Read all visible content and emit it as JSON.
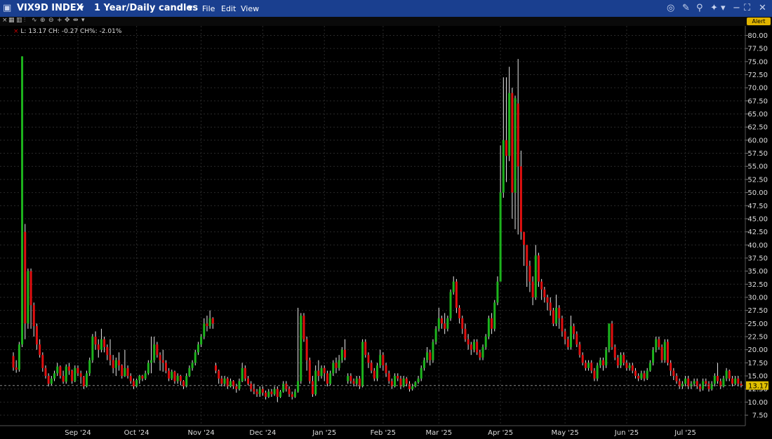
{
  "window": {
    "title": "VIX9D INDEX",
    "timeframe": "1 Year/Daily candles",
    "menu": [
      "File",
      "Edit",
      "View"
    ],
    "alert_label": "Alert"
  },
  "legend": {
    "text": "L: 13.17 CH: -0.27 CH%: -2.01%"
  },
  "last_price_label": "13.17",
  "colors": {
    "up": "#1db31d",
    "down": "#e01010",
    "background": "#000000",
    "title_bar": "#1a3f8f",
    "last_price_tag": "#e0c000"
  },
  "chart_data": {
    "type": "candlestick",
    "title": "",
    "x_tick_labels": [
      "Sep '24",
      "Oct '24",
      "Nov '24",
      "Dec '24",
      "Jan '25",
      "Feb '25",
      "Mar '25",
      "Apr '25",
      "May '25",
      "Jun '25",
      "Jul '25"
    ],
    "y_tick_labels": [
      "80.00",
      "77.50",
      "75.00",
      "72.50",
      "70.00",
      "67.50",
      "65.00",
      "62.50",
      "60.00",
      "57.50",
      "55.00",
      "52.50",
      "50.00",
      "47.50",
      "45.00",
      "42.50",
      "40.00",
      "37.50",
      "35.00",
      "32.50",
      "30.00",
      "27.50",
      "25.00",
      "22.50",
      "20.00",
      "17.50",
      "15.00",
      "12.50",
      "10.00",
      "7.50"
    ],
    "ylim": [
      5.5,
      81
    ],
    "last_value": 13.17,
    "grid": true,
    "candles": [
      [
        18.8,
        16.6,
        19.5,
        16.0
      ],
      [
        16.6,
        16.2,
        18.0,
        15.6
      ],
      [
        16.2,
        21.0,
        21.5,
        15.8
      ],
      [
        21.0,
        76.0,
        76.0,
        20.5
      ],
      [
        42.5,
        25.0,
        44.0,
        22.0
      ],
      [
        25.0,
        35.0,
        35.5,
        24.0
      ],
      [
        35.0,
        28.5,
        35.5,
        24.0
      ],
      [
        28.5,
        24.5,
        29.0,
        22.5
      ],
      [
        24.5,
        21.0,
        25.0,
        20.0
      ],
      [
        21.0,
        19.0,
        22.0,
        18.5
      ],
      [
        19.0,
        16.5,
        19.5,
        15.8
      ],
      [
        16.5,
        15.0,
        17.0,
        14.5
      ],
      [
        15.0,
        13.5,
        15.5,
        13.0
      ],
      [
        13.5,
        14.5,
        15.0,
        13.2
      ],
      [
        14.5,
        15.5,
        16.0,
        14.0
      ],
      [
        15.5,
        16.8,
        17.5,
        15.0
      ],
      [
        16.8,
        15.0,
        17.0,
        14.5
      ],
      [
        15.0,
        13.9,
        16.0,
        13.5
      ],
      [
        13.9,
        16.8,
        17.2,
        13.5
      ],
      [
        16.8,
        16.0,
        17.5,
        15.2
      ],
      [
        16.0,
        14.0,
        16.2,
        13.5
      ],
      [
        14.0,
        16.5,
        17.0,
        13.8
      ],
      [
        16.5,
        15.5,
        17.0,
        15.0
      ],
      [
        15.5,
        14.8,
        16.0,
        13.5
      ],
      [
        14.8,
        13.0,
        15.0,
        12.5
      ],
      [
        13.0,
        15.5,
        16.0,
        12.8
      ],
      [
        15.5,
        18.0,
        18.5,
        15.0
      ],
      [
        18.0,
        22.5,
        23.0,
        17.5
      ],
      [
        22.5,
        21.0,
        23.5,
        20.0
      ],
      [
        21.0,
        20.0,
        22.0,
        18.5
      ],
      [
        20.0,
        22.0,
        24.0,
        19.5
      ],
      [
        22.0,
        20.5,
        22.5,
        19.5
      ],
      [
        20.5,
        19.0,
        21.0,
        18.0
      ],
      [
        19.0,
        18.0,
        22.0,
        17.0
      ],
      [
        18.0,
        16.5,
        19.0,
        15.5
      ],
      [
        16.5,
        18.0,
        18.5,
        15.0
      ],
      [
        18.0,
        17.0,
        19.5,
        16.0
      ],
      [
        17.0,
        15.0,
        17.2,
        14.5
      ],
      [
        15.0,
        16.5,
        20.0,
        14.8
      ],
      [
        16.5,
        15.0,
        17.0,
        14.5
      ],
      [
        15.0,
        14.0,
        15.5,
        13.5
      ],
      [
        14.0,
        13.0,
        14.5,
        12.5
      ],
      [
        13.0,
        14.2,
        14.5,
        12.8
      ],
      [
        14.2,
        15.0,
        15.2,
        13.5
      ],
      [
        15.0,
        14.5,
        15.2,
        14.0
      ],
      [
        14.5,
        15.5,
        16.0,
        14.2
      ],
      [
        15.5,
        17.5,
        18.0,
        15.2
      ],
      [
        17.5,
        18.0,
        22.5,
        15.5
      ],
      [
        18.0,
        21.0,
        22.5,
        17.5
      ],
      [
        21.0,
        19.0,
        21.5,
        18.5
      ],
      [
        19.0,
        18.0,
        19.5,
        16.0
      ],
      [
        18.0,
        17.5,
        20.0,
        15.8
      ],
      [
        17.5,
        16.0,
        18.0,
        15.5
      ],
      [
        16.0,
        14.5,
        16.5,
        14.0
      ],
      [
        14.5,
        15.8,
        16.2,
        14.2
      ],
      [
        15.8,
        14.0,
        16.0,
        13.5
      ],
      [
        14.0,
        15.0,
        15.5,
        13.5
      ],
      [
        15.0,
        14.0,
        15.2,
        13.2
      ],
      [
        14.0,
        13.0,
        14.2,
        12.5
      ],
      [
        13.0,
        15.0,
        15.5,
        12.8
      ],
      [
        15.0,
        16.5,
        17.0,
        14.8
      ],
      [
        16.5,
        17.5,
        18.0,
        16.0
      ],
      [
        17.5,
        19.5,
        20.0,
        17.0
      ],
      [
        19.5,
        21.0,
        21.5,
        19.0
      ],
      [
        21.0,
        22.5,
        23.0,
        20.5
      ],
      [
        22.5,
        25.0,
        26.0,
        22.0
      ],
      [
        25.0,
        24.5,
        26.5,
        23.5
      ],
      [
        24.5,
        26.0,
        27.5,
        24.0
      ],
      [
        26.0,
        25.0,
        26.2,
        24.0
      ],
      [
        17.0,
        16.0,
        17.5,
        15.5
      ],
      [
        16.0,
        14.5,
        16.2,
        13.5
      ],
      [
        14.5,
        13.5,
        15.0,
        13.0
      ],
      [
        13.5,
        14.5,
        15.0,
        13.0
      ],
      [
        14.5,
        13.0,
        14.8,
        12.5
      ],
      [
        13.0,
        14.0,
        14.5,
        12.8
      ],
      [
        14.0,
        13.0,
        14.2,
        12.5
      ],
      [
        13.0,
        12.5,
        13.5,
        11.8
      ],
      [
        12.5,
        14.0,
        14.5,
        12.2
      ],
      [
        14.0,
        16.5,
        17.5,
        13.8
      ],
      [
        16.5,
        14.5,
        17.0,
        14.0
      ],
      [
        14.5,
        13.5,
        15.0,
        13.2
      ],
      [
        13.5,
        12.5,
        14.0,
        12.0
      ],
      [
        12.5,
        12.0,
        13.5,
        11.5
      ],
      [
        12.0,
        11.5,
        12.5,
        11.0
      ],
      [
        11.5,
        12.5,
        13.0,
        11.0
      ],
      [
        12.5,
        11.8,
        13.0,
        11.2
      ],
      [
        11.8,
        11.0,
        12.2,
        10.5
      ],
      [
        11.0,
        12.0,
        12.5,
        10.8
      ],
      [
        12.0,
        11.5,
        12.5,
        11.0
      ],
      [
        11.5,
        12.5,
        13.0,
        11.2
      ],
      [
        12.5,
        11.0,
        13.0,
        10.0
      ],
      [
        11.0,
        12.0,
        12.3,
        10.8
      ],
      [
        12.0,
        13.5,
        14.0,
        11.8
      ],
      [
        13.5,
        12.5,
        14.0,
        12.0
      ],
      [
        12.5,
        11.5,
        13.0,
        11.0
      ],
      [
        11.5,
        11.0,
        12.0,
        10.5
      ],
      [
        11.0,
        12.0,
        12.5,
        10.8
      ],
      [
        12.0,
        14.0,
        28.0,
        11.8
      ],
      [
        14.0,
        26.5,
        27.0,
        13.5
      ],
      [
        26.5,
        22.0,
        27.0,
        21.5
      ],
      [
        22.0,
        18.0,
        22.5,
        16.0
      ],
      [
        18.0,
        14.0,
        18.5,
        13.5
      ],
      [
        14.0,
        11.5,
        15.0,
        11.0
      ],
      [
        11.5,
        16.0,
        17.0,
        11.2
      ],
      [
        16.0,
        15.0,
        18.0,
        14.0
      ],
      [
        15.0,
        16.5,
        17.0,
        14.5
      ],
      [
        16.5,
        15.5,
        17.0,
        14.0
      ],
      [
        15.5,
        13.5,
        16.0,
        13.0
      ],
      [
        13.5,
        15.5,
        16.0,
        13.2
      ],
      [
        15.5,
        17.5,
        18.0,
        15.0
      ],
      [
        17.5,
        16.5,
        18.5,
        15.5
      ],
      [
        16.5,
        18.0,
        19.0,
        16.0
      ],
      [
        18.0,
        20.0,
        20.5,
        17.5
      ],
      [
        20.0,
        18.5,
        22.0,
        18.0
      ],
      [
        14.0,
        15.0,
        15.5,
        13.5
      ],
      [
        15.0,
        14.0,
        15.5,
        13.5
      ],
      [
        14.0,
        13.5,
        14.5,
        13.0
      ],
      [
        13.5,
        14.5,
        15.0,
        13.0
      ],
      [
        14.5,
        13.0,
        15.0,
        12.5
      ],
      [
        13.0,
        21.5,
        22.0,
        12.8
      ],
      [
        21.5,
        19.0,
        22.0,
        18.5
      ],
      [
        19.0,
        17.5,
        19.5,
        16.5
      ],
      [
        17.5,
        16.0,
        18.0,
        15.5
      ],
      [
        16.0,
        14.5,
        16.5,
        14.0
      ],
      [
        14.5,
        17.0,
        17.5,
        14.0
      ],
      [
        17.0,
        19.0,
        20.0,
        16.5
      ],
      [
        19.0,
        17.0,
        19.5,
        16.0
      ],
      [
        17.0,
        15.5,
        17.5,
        14.8
      ],
      [
        15.5,
        14.0,
        16.0,
        13.5
      ],
      [
        14.0,
        13.0,
        14.5,
        12.5
      ],
      [
        13.0,
        15.0,
        15.5,
        12.8
      ],
      [
        15.0,
        14.5,
        15.5,
        14.0
      ],
      [
        14.5,
        13.0,
        15.0,
        12.5
      ],
      [
        13.0,
        14.5,
        15.0,
        12.8
      ],
      [
        14.5,
        13.5,
        14.8,
        13.0
      ],
      [
        13.5,
        12.5,
        14.0,
        12.0
      ],
      [
        12.5,
        13.0,
        13.5,
        12.2
      ],
      [
        13.0,
        13.8,
        14.0,
        12.8
      ],
      [
        13.8,
        14.5,
        15.0,
        13.5
      ],
      [
        14.5,
        16.5,
        17.0,
        14.0
      ],
      [
        16.5,
        18.0,
        18.5,
        16.0
      ],
      [
        18.0,
        19.5,
        20.5,
        17.5
      ],
      [
        19.5,
        18.0,
        20.0,
        17.0
      ],
      [
        18.0,
        21.5,
        22.0,
        17.5
      ],
      [
        21.5,
        24.0,
        24.5,
        21.0
      ],
      [
        24.0,
        26.0,
        28.0,
        23.5
      ],
      [
        26.0,
        25.0,
        26.5,
        24.0
      ],
      [
        25.0,
        24.0,
        27.0,
        23.0
      ],
      [
        24.0,
        26.0,
        26.5,
        23.5
      ],
      [
        26.0,
        31.0,
        31.5,
        25.5
      ],
      [
        31.0,
        33.0,
        34.0,
        30.5
      ],
      [
        33.0,
        28.0,
        33.5,
        27.0
      ],
      [
        28.0,
        26.0,
        28.5,
        25.0
      ],
      [
        26.0,
        24.0,
        26.5,
        23.0
      ],
      [
        24.0,
        22.0,
        25.0,
        21.5
      ],
      [
        22.0,
        21.0,
        23.0,
        20.0
      ],
      [
        21.0,
        20.0,
        21.5,
        19.0
      ],
      [
        20.0,
        21.5,
        22.0,
        19.5
      ],
      [
        21.5,
        19.5,
        22.0,
        19.0
      ],
      [
        19.5,
        18.5,
        20.0,
        18.0
      ],
      [
        18.5,
        20.5,
        21.0,
        18.0
      ],
      [
        20.5,
        22.5,
        23.0,
        20.0
      ],
      [
        22.5,
        26.0,
        26.5,
        22.0
      ],
      [
        26.0,
        24.0,
        27.0,
        23.0
      ],
      [
        24.0,
        29.0,
        29.5,
        23.5
      ],
      [
        29.0,
        33.0,
        34.0,
        28.5
      ],
      [
        33.0,
        50.0,
        59.0,
        44.0
      ],
      [
        50.0,
        60.0,
        72.0,
        49.0
      ],
      [
        60.0,
        57.0,
        72.0,
        52.0
      ],
      [
        57.0,
        69.0,
        74.0,
        56.0
      ],
      [
        69.0,
        50.0,
        70.0,
        45.0
      ],
      [
        50.0,
        68.0,
        68.5,
        43.0
      ],
      [
        67.0,
        55.0,
        75.5,
        42.0
      ],
      [
        55.0,
        42.5,
        58.0,
        41.0
      ],
      [
        42.5,
        40.0,
        40.5,
        36.0
      ],
      [
        40.0,
        36.0,
        37.5,
        32.0
      ],
      [
        36.0,
        33.0,
        37.0,
        31.0
      ],
      [
        33.0,
        30.0,
        34.0,
        28.5
      ],
      [
        30.0,
        38.0,
        40.0,
        29.5
      ],
      [
        38.0,
        33.0,
        38.5,
        32.0
      ],
      [
        33.0,
        31.5,
        33.5,
        29.5
      ],
      [
        31.5,
        30.0,
        32.0,
        29.0
      ],
      [
        30.0,
        29.0,
        30.5,
        27.5
      ],
      [
        29.0,
        27.5,
        30.0,
        26.5
      ],
      [
        27.5,
        25.0,
        28.0,
        24.5
      ],
      [
        25.0,
        28.0,
        30.5,
        24.5
      ],
      [
        28.0,
        26.0,
        28.5,
        24.0
      ],
      [
        26.0,
        23.5,
        26.5,
        22.5
      ],
      [
        23.5,
        22.0,
        24.0,
        21.0
      ],
      [
        22.0,
        20.5,
        22.5,
        20.0
      ],
      [
        20.5,
        24.5,
        26.5,
        20.0
      ],
      [
        24.5,
        23.0,
        25.0,
        22.0
      ],
      [
        23.0,
        21.0,
        23.5,
        20.5
      ],
      [
        21.0,
        19.0,
        21.5,
        18.5
      ],
      [
        19.0,
        17.5,
        19.5,
        17.0
      ],
      [
        17.5,
        16.5,
        18.0,
        16.0
      ],
      [
        16.5,
        17.5,
        18.0,
        16.0
      ],
      [
        17.5,
        16.0,
        18.0,
        15.5
      ],
      [
        16.0,
        14.5,
        16.5,
        14.0
      ],
      [
        14.5,
        17.0,
        17.5,
        14.0
      ],
      [
        17.0,
        18.0,
        18.5,
        16.5
      ],
      [
        18.0,
        17.0,
        18.5,
        16.0
      ],
      [
        17.0,
        20.0,
        20.5,
        16.5
      ],
      [
        20.0,
        25.0,
        25.0,
        19.5
      ],
      [
        25.0,
        20.5,
        25.5,
        20.0
      ],
      [
        20.5,
        18.5,
        21.0,
        18.0
      ],
      [
        18.5,
        17.0,
        19.0,
        16.5
      ],
      [
        17.0,
        19.0,
        19.5,
        16.5
      ],
      [
        19.0,
        17.5,
        19.5,
        17.0
      ],
      [
        17.5,
        16.5,
        18.0,
        16.0
      ],
      [
        16.5,
        17.0,
        17.5,
        16.0
      ],
      [
        17.0,
        16.0,
        17.5,
        15.5
      ],
      [
        16.0,
        15.0,
        16.5,
        14.5
      ],
      [
        15.0,
        14.5,
        15.5,
        14.0
      ],
      [
        14.5,
        15.5,
        16.0,
        14.2
      ],
      [
        15.5,
        14.5,
        16.0,
        14.0
      ],
      [
        14.5,
        16.0,
        16.5,
        14.2
      ],
      [
        16.0,
        17.5,
        18.0,
        15.8
      ],
      [
        17.5,
        20.0,
        20.5,
        17.0
      ],
      [
        20.0,
        22.0,
        22.5,
        19.5
      ],
      [
        22.0,
        20.5,
        22.5,
        20.0
      ],
      [
        20.5,
        18.0,
        21.0,
        17.5
      ],
      [
        18.0,
        21.5,
        22.0,
        17.5
      ],
      [
        21.5,
        17.5,
        22.0,
        17.0
      ],
      [
        17.5,
        16.0,
        18.0,
        15.0
      ],
      [
        16.0,
        15.0,
        16.5,
        14.2
      ],
      [
        15.0,
        14.0,
        15.5,
        13.5
      ],
      [
        14.0,
        13.0,
        14.5,
        12.5
      ],
      [
        13.0,
        13.5,
        14.0,
        12.5
      ],
      [
        13.5,
        14.5,
        15.0,
        13.0
      ],
      [
        14.5,
        13.0,
        15.0,
        12.5
      ],
      [
        13.0,
        13.5,
        14.0,
        12.5
      ],
      [
        13.5,
        14.0,
        14.5,
        13.0
      ],
      [
        14.0,
        13.0,
        14.5,
        12.5
      ],
      [
        13.0,
        12.5,
        13.5,
        12.0
      ],
      [
        12.5,
        14.0,
        14.5,
        12.2
      ],
      [
        14.0,
        13.5,
        14.5,
        13.0
      ],
      [
        13.5,
        12.5,
        14.0,
        12.0
      ],
      [
        12.5,
        13.5,
        14.0,
        12.2
      ],
      [
        13.5,
        15.0,
        15.5,
        13.0
      ],
      [
        15.0,
        14.0,
        17.5,
        13.5
      ],
      [
        14.0,
        13.0,
        14.5,
        12.5
      ],
      [
        13.0,
        14.5,
        15.0,
        12.8
      ],
      [
        14.5,
        16.0,
        16.5,
        14.0
      ],
      [
        16.0,
        14.5,
        16.2,
        14.0
      ],
      [
        14.5,
        13.5,
        15.0,
        13.0
      ],
      [
        13.5,
        14.5,
        15.0,
        13.2
      ],
      [
        14.5,
        13.5,
        15.0,
        13.0
      ],
      [
        13.5,
        13.17,
        14.0,
        12.8
      ]
    ]
  }
}
